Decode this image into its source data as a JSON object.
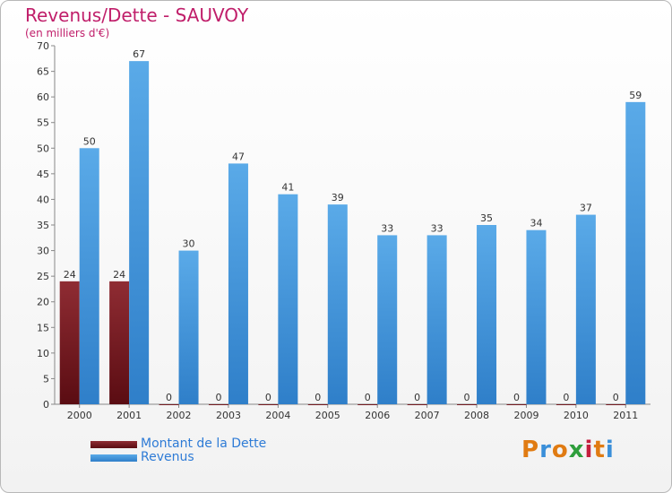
{
  "header": {
    "title": "Revenus/Dette - SAUVOY",
    "subtitle": "(en milliers d'€)"
  },
  "legend": [
    {
      "label": "Montant de la Dette",
      "color": "#7d1e24"
    },
    {
      "label": "Revenus",
      "color": "#4a9ee0"
    }
  ],
  "logo": {
    "text": "Proxiti",
    "letters": [
      "P",
      "r",
      "o",
      "x",
      "i",
      "t",
      "i"
    ],
    "colors": [
      "#e07b12",
      "#3a8fd9",
      "#e07b12",
      "#2e9e3c",
      "#c41f3e",
      "#e07b12",
      "#3a8fd9"
    ]
  },
  "chart_data": {
    "type": "bar",
    "categories": [
      "2000",
      "2001",
      "2002",
      "2003",
      "2004",
      "2005",
      "2006",
      "2007",
      "2008",
      "2009",
      "2010",
      "2011"
    ],
    "series": [
      {
        "name": "Montant de la Dette",
        "values": [
          24,
          24,
          0,
          0,
          0,
          0,
          0,
          0,
          0,
          0,
          0,
          0
        ],
        "color": "#7d1e24"
      },
      {
        "name": "Revenus",
        "values": [
          50,
          67,
          30,
          47,
          41,
          39,
          33,
          33,
          35,
          34,
          37,
          59
        ],
        "color": "#4a9ee0"
      }
    ],
    "title": "Revenus/Dette - SAUVOY",
    "ylabel": "(en milliers d'€)",
    "ylim": [
      0,
      70
    ],
    "yticks": [
      0,
      5,
      10,
      15,
      20,
      25,
      30,
      35,
      40,
      45,
      50,
      55,
      60,
      65,
      70
    ],
    "grid": false,
    "legend_position": "bottom-left"
  }
}
